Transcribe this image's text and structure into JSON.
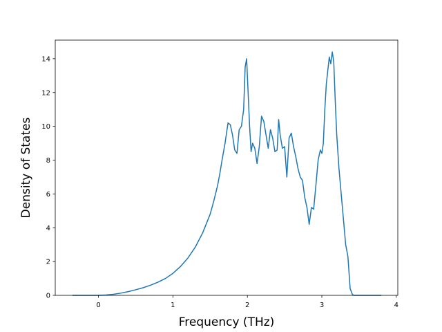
{
  "chart_data": {
    "type": "line",
    "title": "",
    "xlabel": "Frequency (THz)",
    "ylabel": "Density of States",
    "xlim": [
      -0.58,
      4.02
    ],
    "ylim": [
      0,
      15.1
    ],
    "xticks": [
      0,
      1,
      2,
      3,
      4
    ],
    "yticks": [
      0,
      2,
      4,
      6,
      8,
      10,
      12,
      14
    ],
    "grid": false,
    "series": [
      {
        "color": "#1f77b4",
        "x": [
          -0.35,
          -0.2,
          0,
          0.1,
          0.2,
          0.3,
          0.4,
          0.5,
          0.6,
          0.7,
          0.8,
          0.9,
          1.0,
          1.1,
          1.2,
          1.3,
          1.4,
          1.5,
          1.55,
          1.6,
          1.63,
          1.66,
          1.7,
          1.74,
          1.77,
          1.8,
          1.83,
          1.86,
          1.89,
          1.92,
          1.95,
          1.97,
          1.99,
          2.01,
          2.03,
          2.05,
          2.07,
          2.1,
          2.13,
          2.16,
          2.19,
          2.22,
          2.25,
          2.28,
          2.31,
          2.34,
          2.37,
          2.4,
          2.42,
          2.44,
          2.47,
          2.5,
          2.53,
          2.56,
          2.59,
          2.62,
          2.65,
          2.68,
          2.71,
          2.74,
          2.77,
          2.8,
          2.83,
          2.86,
          2.89,
          2.92,
          2.95,
          2.98,
          3.0,
          3.02,
          3.04,
          3.06,
          3.08,
          3.1,
          3.12,
          3.14,
          3.16,
          3.18,
          3.2,
          3.23,
          3.26,
          3.29,
          3.32,
          3.35,
          3.38,
          3.41,
          3.43,
          3.44,
          3.46,
          3.6,
          3.8
        ],
        "y": [
          0,
          0,
          0,
          0.02,
          0.06,
          0.13,
          0.22,
          0.33,
          0.45,
          0.6,
          0.78,
          1.0,
          1.3,
          1.7,
          2.2,
          2.85,
          3.7,
          4.8,
          5.6,
          6.5,
          7.2,
          8.0,
          9.0,
          10.2,
          10.1,
          9.5,
          8.6,
          8.4,
          9.8,
          10.0,
          11.0,
          13.5,
          14.0,
          12.0,
          10.0,
          8.5,
          9.0,
          8.7,
          7.8,
          8.8,
          10.6,
          10.3,
          9.5,
          8.7,
          9.8,
          9.3,
          8.5,
          8.6,
          10.4,
          9.5,
          8.7,
          8.8,
          7.0,
          9.3,
          9.6,
          8.8,
          8.2,
          7.5,
          7.0,
          6.8,
          5.8,
          5.2,
          4.2,
          5.2,
          5.1,
          6.5,
          8.0,
          8.6,
          8.4,
          9.0,
          11.0,
          12.5,
          13.3,
          14.1,
          13.7,
          14.4,
          13.8,
          11.5,
          9.5,
          7.5,
          6.0,
          4.5,
          3.0,
          2.3,
          0.4,
          0.05,
          0,
          0,
          0,
          0,
          0
        ]
      }
    ]
  }
}
